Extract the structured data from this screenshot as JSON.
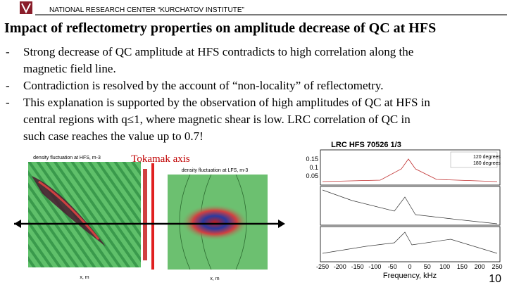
{
  "header": {
    "org": "NATIONAL RESEARCH CENTER “KURCHATOV INSTITUTE”"
  },
  "title": "Impact of reflectometry properties on amplitude decrease of QC at HFS",
  "bullets": [
    {
      "marker": "-",
      "lines": [
        "Strong decrease of QC amplitude at HFS contradicts to high correlation along the",
        "magnetic field line."
      ]
    },
    {
      "marker": "-",
      "lines": [
        "Contradiction is resolved by the account of “non-locality” of reflectometry."
      ]
    },
    {
      "marker": "-",
      "lines": [
        "This explanation is supported by the observation of high amplitudes of QC at HFS in",
        "central regions with q≤1, where magnetic shear is low. LRC correlation of QC in",
        "such case reaches the value up to 0.7!"
      ]
    }
  ],
  "figure": {
    "axis_label": "Tokamak axis",
    "left_plot": {
      "title": "density fluctuation at HFS, m-3",
      "xlabel": "x, m"
    },
    "middle_plot": {
      "title": "density fluctuation at LFS, m-3",
      "xlabel": "x, m"
    },
    "right_plot": {
      "title": "LRC HFS 70526 1/3",
      "legend": [
        "120 degrees",
        "180 degrees"
      ],
      "yticks": [
        "0.15",
        "0.1",
        "0.05"
      ],
      "xticks": [
        "-250",
        "-200",
        "-150",
        "-100",
        "-50",
        "0",
        "50",
        "100",
        "150",
        "200",
        "250"
      ],
      "xlabel": "Frequency, kHz"
    }
  },
  "page_number": "10"
}
